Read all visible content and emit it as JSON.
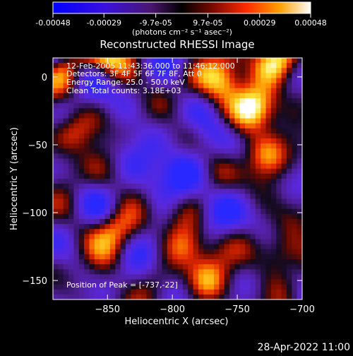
{
  "colorbar": {
    "tick_labels": [
      "-0.00048",
      "-0.00029",
      "-9.7e-05",
      "9.7e-05",
      "0.00029",
      "0.00048"
    ],
    "tick_values": [
      -0.00048,
      -0.00029,
      -9.7e-05,
      9.7e-05,
      0.00029,
      0.00048
    ],
    "range": [
      -0.00048,
      0.00048
    ],
    "unit_label": "(photons cm⁻² s⁻¹ asec⁻²)"
  },
  "title": "Reconstructed RHESSI Image",
  "annotations": {
    "time_range": "12-Feb-2005 11:43:36.000 to 11:46:12.000",
    "detectors": "Detectors: 3F 4F 5F 6F 7F 8F, Att 0",
    "energy_range": "Energy Range: 25.0 - 50.0 keV",
    "clean": "Clean      Total counts: 3.18E+03",
    "peak": "Position of Peak = [-737,-22]"
  },
  "footer_timestamp": "28-Apr-2022 11:00",
  "chart_data": {
    "type": "heatmap",
    "title": "Reconstructed RHESSI Image",
    "xlabel": "Heliocentric X (arcsec)",
    "ylabel": "Heliocentric Y (arcsec)",
    "xlim": [
      -892,
      -700
    ],
    "ylim": [
      -164,
      14
    ],
    "x_ticks": [
      -850,
      -800,
      -750,
      -700
    ],
    "x_tick_labels": [
      "−850",
      "−800",
      "−750",
      "−700"
    ],
    "y_ticks": [
      0,
      -50,
      -100,
      -150
    ],
    "y_tick_labels": [
      "0",
      "−50",
      "−100",
      "−150"
    ],
    "colormap": "RHESSI blue-purple-black-red-yellow-white",
    "value_range": [
      -0.00048,
      0.00048
    ],
    "peak_position": [
      -737,
      -22
    ],
    "hot_regions": [
      {
        "x": -737,
        "y": -22,
        "intensity": 1.0
      },
      {
        "x": -760,
        "y": -2,
        "intensity": 0.85
      },
      {
        "x": -718,
        "y": 12,
        "intensity": 0.8
      },
      {
        "x": -728,
        "y": -58,
        "intensity": 0.7
      },
      {
        "x": -850,
        "y": 12,
        "intensity": 0.6
      },
      {
        "x": -880,
        "y": -40,
        "intensity": 0.6
      },
      {
        "x": -845,
        "y": -110,
        "intensity": 0.7
      },
      {
        "x": -790,
        "y": -125,
        "intensity": 0.65
      },
      {
        "x": -775,
        "y": -150,
        "intensity": 0.6
      },
      {
        "x": -715,
        "y": -130,
        "intensity": 0.55
      }
    ]
  }
}
